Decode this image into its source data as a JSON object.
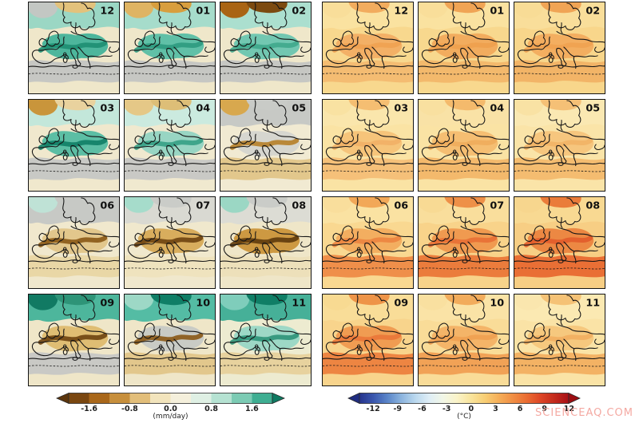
{
  "watermark": "SCIENCEAQ.COM",
  "panels": {
    "precipitation": {
      "colorbar": {
        "ticks": [
          "-1.6",
          "-0.8",
          "0.0",
          "0.8",
          "1.6"
        ],
        "unit": "(mm/day)",
        "segments": [
          "#7A4710",
          "#A9671A",
          "#C78F3C",
          "#E2BE7A",
          "#F2E4BC",
          "#F5F0DC",
          "#DFF0E4",
          "#B5E2D2",
          "#7CCBB4",
          "#3FAE92"
        ],
        "arrow_left": "#5C350C",
        "arrow_right": "#0F7A62"
      },
      "maps": [
        {
          "label": "12",
          "base": "#EFE7CA",
          "north": "#9BD7C4",
          "mid": "#4DB69C",
          "south": "#C6C7C3",
          "corner": "#C3C7C3",
          "topspot": "#E3C27C",
          "ridge": "#1E8E72"
        },
        {
          "label": "01",
          "base": "#EFE7CA",
          "north": "#A6DCCB",
          "mid": "#60C0A7",
          "south": "#C6C7C3",
          "corner": "#DFB463",
          "topspot": "#D89E3E",
          "ridge": "#2E9A80"
        },
        {
          "label": "02",
          "base": "#EFE7CA",
          "north": "#ABDFCF",
          "mid": "#72C7B1",
          "south": "#C6C7C3",
          "corner": "#A96414",
          "topspot": "#7C4A10",
          "ridge": "#3FA78C"
        },
        {
          "label": "03",
          "base": "#F0E8CD",
          "north": "#C3E7DA",
          "mid": "#5CBEA4",
          "south": "#C8C9C5",
          "corner": "#C9953B",
          "topspot": "#E9D29E",
          "ridge": "#0F7E66"
        },
        {
          "label": "04",
          "base": "#F0E9CF",
          "north": "#CBEADF",
          "mid": "#98D5C3",
          "south": "#C9C9C5",
          "corner": "#E5C887",
          "topspot": "#DDBE77",
          "ridge": "#35A085"
        },
        {
          "label": "05",
          "base": "#F1EAD2",
          "north": "#C7C9C5",
          "mid": "#D6D6CF",
          "south": "#E2C78C",
          "corner": "#D8A84E",
          "topspot": "#C9CBC7",
          "ridge": "#B67F28"
        },
        {
          "label": "06",
          "base": "#F0E8CD",
          "north": "#C7C9C5",
          "mid": "#E2C78C",
          "south": "#E9D7A6",
          "corner": "#BFE2D6",
          "topspot": "#C7C9C5",
          "ridge": "#8A5815"
        },
        {
          "label": "07",
          "base": "#F0E8CD",
          "north": "#D9D9D2",
          "mid": "#D8AD5D",
          "south": "#EFE3BE",
          "corner": "#A6DCCB",
          "topspot": "#CACCC8",
          "ridge": "#6E4210"
        },
        {
          "label": "08",
          "base": "#EFE6C8",
          "north": "#DCDCD4",
          "mid": "#CD9942",
          "south": "#EDE0BA",
          "corner": "#9BD7C4",
          "topspot": "#CACCC8",
          "ridge": "#5E3A0C"
        },
        {
          "label": "09",
          "base": "#EFE6C8",
          "north": "#4DB69C",
          "mid": "#DFBD73",
          "south": "#C9C9C5",
          "corner": "#117A63",
          "topspot": "#2E9478",
          "ridge": "#6E4210"
        },
        {
          "label": "10",
          "base": "#EFE6C8",
          "north": "#54BCA4",
          "mid": "#C9CBC5",
          "south": "#E2C78C",
          "corner": "#9DD8C6",
          "topspot": "#0F7E66",
          "ridge": "#8A5815"
        },
        {
          "label": "11",
          "base": "#EDEBD0",
          "north": "#46B098",
          "mid": "#9DD8C6",
          "south": "#E7D29E",
          "corner": "#7FCDBB",
          "topspot": "#0F7E66",
          "ridge": "#2E9478"
        }
      ]
    },
    "temperature": {
      "colorbar": {
        "ticks": [
          "-12",
          "-9",
          "-6",
          "-3",
          "0",
          "3",
          "6",
          "9",
          "12"
        ],
        "unit": "(°C)",
        "gradient": [
          "#26348C",
          "#3A57AE",
          "#5A85C8",
          "#8CB4DE",
          "#BAD8EE",
          "#DFEEF6",
          "#F2F7E6",
          "#FAF3C8",
          "#F9E49C",
          "#F8CE74",
          "#F5AE58",
          "#F08E44",
          "#EA6C32",
          "#DD4526",
          "#C32A1C",
          "#A81016"
        ],
        "arrow_left": "#1F2C80",
        "arrow_right": "#9C0E12"
      },
      "maps": [
        {
          "label": "12",
          "base": "#F8D88E",
          "north": "#FAE2A0",
          "mid": "#F3B066",
          "south": "#F4BC72",
          "corner": "#F9DE9A",
          "topspot": "#F2AC5E",
          "ridge": "#EFA251"
        },
        {
          "label": "01",
          "base": "#F8D88E",
          "north": "#FAE2A0",
          "mid": "#F2AC5E",
          "south": "#F3B96C",
          "corner": "#F9DE9A",
          "topspot": "#F0A455",
          "ridge": "#EEA04E"
        },
        {
          "label": "02",
          "base": "#F8D68B",
          "north": "#F9DE9A",
          "mid": "#F3AE60",
          "south": "#F2B467",
          "corner": "#F8DC96",
          "topspot": "#F0A455",
          "ridge": "#EFA251"
        },
        {
          "label": "03",
          "base": "#FAE3A4",
          "north": "#FAE6AC",
          "mid": "#F6C47A",
          "south": "#F5C079",
          "corner": "#F9E2A2",
          "topspot": "#F5BE72",
          "ridge": "#F2B066"
        },
        {
          "label": "04",
          "base": "#FAE3A4",
          "north": "#F9E2A6",
          "mid": "#F5BE72",
          "south": "#F3B96C",
          "corner": "#F9E0A0",
          "topspot": "#F4BA6C",
          "ridge": "#F0AC5C"
        },
        {
          "label": "05",
          "base": "#FAE4A8",
          "north": "#FAE8B2",
          "mid": "#F6C67E",
          "south": "#F4BC70",
          "corner": "#F9E2A4",
          "topspot": "#F5C076",
          "ridge": "#F2B266"
        },
        {
          "label": "06",
          "base": "#F9D891",
          "north": "#FAE2A2",
          "mid": "#F3AE60",
          "south": "#EF8F4A",
          "corner": "#F9DE9C",
          "topspot": "#F2A858",
          "ridge": "#EC8440"
        },
        {
          "label": "07",
          "base": "#F8D38A",
          "north": "#F9DE9C",
          "mid": "#F09A50",
          "south": "#EB7C3C",
          "corner": "#F8DA94",
          "topspot": "#EE9048",
          "ridge": "#E86F34"
        },
        {
          "label": "08",
          "base": "#F7CE84",
          "north": "#F8D992",
          "mid": "#EC8843",
          "south": "#E96F35",
          "corner": "#F7D68E",
          "topspot": "#EA7C3A",
          "ridge": "#E25C2B"
        },
        {
          "label": "09",
          "base": "#F8D48C",
          "north": "#F9DD98",
          "mid": "#F09C52",
          "south": "#ED8542",
          "corner": "#F8DA92",
          "topspot": "#EE9448",
          "ridge": "#EA7738"
        },
        {
          "label": "10",
          "base": "#F9DC98",
          "north": "#FAE3A6",
          "mid": "#F4B468",
          "south": "#F1A256",
          "corner": "#F9E0A0",
          "topspot": "#F2AC5C",
          "ridge": "#EFA051"
        },
        {
          "label": "11",
          "base": "#FAE3A6",
          "north": "#FBE9B2",
          "mid": "#F6C87E",
          "south": "#F3B264",
          "corner": "#FAE6AE",
          "topspot": "#F5C276",
          "ridge": "#F2AE60"
        }
      ]
    }
  },
  "chart_data": [
    {
      "type": "heatmap",
      "panel": "precipitation-change-maps",
      "region": "Europe",
      "layout": "4 rows x 3 columns of monthly maps, month number printed top-right of each map",
      "months": [
        "12",
        "01",
        "02",
        "03",
        "04",
        "05",
        "06",
        "07",
        "08",
        "09",
        "10",
        "11"
      ],
      "colorbar": {
        "ticks": [
          -1.6,
          -0.8,
          0.0,
          0.8,
          1.6
        ],
        "unit": "(mm/day)",
        "palette": "brown (drier) to teal (wetter), gray = masked/no signal",
        "arrows": "both ends"
      },
      "pattern_by_month": {
        "12": "wetter (teal, ~0.8-1.6) over central and northern Europe; gray over Mediterranean",
        "01": "wetter over northern/central Europe; tan drying patch in NW corner; gray Mediterranean",
        "02": "wetter north and east; strong brown drying patch in NW corner; gray Mediterranean",
        "03": "wetter central/eastern Europe with dark teal over Alps/Balkans; drier NW corner; gray south",
        "04": "weak wetting in north; tan drying over Iberia; gray Mediterranean",
        "05": "mostly neutral; gray over northern Europe; tan-brown drying over Iberia and North Africa",
        "06": "tan-brown drying over southern and central Europe; gray Scandinavia; small teal NW corner",
        "07": "strong brown drying over central Europe; gray far north; teal NW corner",
        "08": "strongest dark-brown drying over central/eastern Europe; teal NW corner",
        "09": "dark teal wetting far north; strong brown drying band across SW/central Europe; gray south",
        "10": "dark teal wetting over Scandinavia; gray central band; tan drying with brown ridges in south",
        "11": "broad teal wetting over northern/western Europe with dark teal spots; tan drying SW; gray south"
      }
    },
    {
      "type": "heatmap",
      "panel": "temperature-change-maps",
      "region": "Europe",
      "layout": "4 rows x 3 columns of monthly maps, month number printed top-right of each map",
      "months": [
        "12",
        "01",
        "02",
        "03",
        "04",
        "05",
        "06",
        "07",
        "08",
        "09",
        "10",
        "11"
      ],
      "colorbar": {
        "ticks": [
          -12,
          -9,
          -6,
          -3,
          0,
          3,
          6,
          9,
          12
        ],
        "unit": "(°C)",
        "palette": "blue (cooling) to red (warming)",
        "arrows": "both ends"
      },
      "pattern_by_month": {
        "12": "uniform warming ~3-4 °C, slightly stronger in the east",
        "01": "warming ~3-4 °C, stronger central/eastern Europe",
        "02": "warming ~3-4 °C, stronger northeast",
        "03": "moderate warming ~2-3 °C",
        "04": "moderate warming ~2-3 °C",
        "05": "moderate warming ~2-3 °C",
        "06": "warming ~3-5 °C, stronger over Iberia and Mediterranean",
        "07": "strong warming ~4-6 °C over southern/central Europe",
        "08": "strongest warming ~5-7 °C over central and southern Europe",
        "09": "strong warming ~4-6 °C over southwestern Europe",
        "10": "moderate warming ~3-4 °C",
        "11": "moderate warming ~2-3 °C"
      }
    }
  ]
}
